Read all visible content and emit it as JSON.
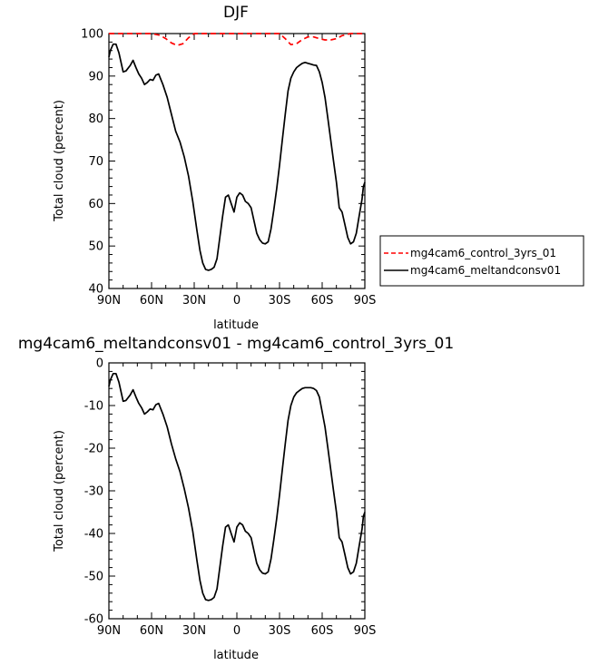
{
  "chart_data": [
    {
      "type": "line",
      "title": "DJF",
      "xlabel": "latitude",
      "ylabel": "Total cloud (percent)",
      "xlim": [
        90,
        -90
      ],
      "ylim": [
        40,
        100
      ],
      "xticks": [
        90,
        60,
        30,
        0,
        -30,
        -60,
        -90
      ],
      "xticklabels": [
        "90N",
        "60N",
        "30N",
        "0",
        "30S",
        "60S",
        "90S"
      ],
      "yticks": [
        40,
        50,
        60,
        70,
        80,
        90,
        100
      ],
      "yticklabels": [
        "40",
        "50",
        "60",
        "70",
        "80",
        "90",
        "100"
      ],
      "legend_position": "outside-right",
      "series": [
        {
          "name": "mg4cam6_control_3yrs_01",
          "color": "#ff0000",
          "dash": "dashed",
          "x": [
            90,
            60,
            54,
            50,
            46,
            42,
            38,
            34,
            30,
            0,
            -30,
            -34,
            -38,
            -42,
            -46,
            -50,
            -54,
            -58,
            -62,
            -66,
            -70,
            -74,
            -80,
            -90
          ],
          "y": [
            100,
            100,
            99.6,
            98.8,
            97.8,
            97.2,
            97.6,
            99.0,
            100,
            100,
            100,
            98.8,
            97.4,
            97.6,
            98.6,
            99.2,
            99.2,
            98.8,
            98.5,
            98.5,
            98.8,
            99.5,
            100,
            100
          ]
        },
        {
          "name": "mg4cam6_meltandconsv01",
          "color": "#000000",
          "dash": "solid",
          "x": [
            90,
            89,
            87,
            85,
            83,
            80,
            78,
            75,
            73,
            71,
            69,
            67,
            65,
            63,
            61,
            59,
            57,
            55,
            52,
            49,
            46,
            43,
            40,
            37,
            34,
            31,
            28,
            26,
            24,
            22,
            20,
            18,
            16,
            14,
            12,
            10,
            8,
            6,
            5,
            4,
            2,
            0,
            -2,
            -4,
            -6,
            -8,
            -10,
            -12,
            -14,
            -16,
            -18,
            -20,
            -22,
            -24,
            -26,
            -28,
            -30,
            -32,
            -34,
            -36,
            -38,
            -40,
            -42,
            -44,
            -46,
            -48,
            -50,
            -52,
            -54,
            -56,
            -58,
            -60,
            -62,
            -64,
            -66,
            -68,
            -70,
            -72,
            -74,
            -76,
            -78,
            -80,
            -82,
            -84,
            -86,
            -88,
            -89,
            -90
          ],
          "y": [
            94.5,
            96.0,
            97.5,
            97.5,
            95.5,
            91.0,
            91.2,
            92.5,
            93.7,
            92.0,
            90.5,
            89.5,
            88.0,
            88.5,
            89.2,
            89.0,
            90.2,
            90.5,
            88.0,
            85.0,
            81.0,
            77.0,
            74.5,
            71.0,
            66.5,
            60.5,
            53.5,
            49.0,
            46.0,
            44.5,
            44.3,
            44.5,
            45.0,
            47.0,
            52.0,
            57.0,
            61.5,
            62.0,
            61.0,
            60.0,
            58.0,
            61.5,
            62.5,
            62.0,
            60.5,
            60.0,
            59.0,
            56.0,
            53.0,
            51.5,
            50.7,
            50.5,
            51.0,
            54.0,
            58.5,
            63.5,
            69.0,
            75.0,
            81.0,
            86.5,
            89.5,
            91.0,
            92.0,
            92.5,
            93.0,
            93.2,
            93.0,
            92.8,
            92.6,
            92.5,
            91.0,
            88.5,
            85.0,
            80.0,
            75.0,
            70.0,
            65.0,
            59.0,
            58.0,
            55.0,
            52.0,
            50.5,
            51.0,
            53.0,
            57.0,
            61.0,
            64.0,
            65.0
          ]
        }
      ]
    },
    {
      "type": "line",
      "title": "mg4cam6_meltandconsv01 - mg4cam6_control_3yrs_01",
      "xlabel": "latitude",
      "ylabel": "Total cloud (percent)",
      "xlim": [
        90,
        -90
      ],
      "ylim": [
        -60,
        0
      ],
      "xticks": [
        90,
        60,
        30,
        0,
        -30,
        -60,
        -90
      ],
      "xticklabels": [
        "90N",
        "60N",
        "30N",
        "0",
        "30S",
        "60S",
        "90S"
      ],
      "yticks": [
        -60,
        -50,
        -40,
        -30,
        -20,
        -10,
        0
      ],
      "yticklabels": [
        "-60",
        "-50",
        "-40",
        "-30",
        "-20",
        "-10",
        "0"
      ],
      "series": [
        {
          "color": "#000000",
          "dash": "solid",
          "x": [
            90,
            89,
            87,
            85,
            83,
            80,
            78,
            75,
            73,
            71,
            69,
            67,
            65,
            63,
            61,
            59,
            57,
            55,
            52,
            49,
            46,
            43,
            40,
            37,
            34,
            31,
            28,
            26,
            24,
            22,
            20,
            18,
            16,
            14,
            12,
            10,
            8,
            6,
            5,
            4,
            2,
            0,
            -2,
            -4,
            -6,
            -8,
            -10,
            -12,
            -14,
            -16,
            -18,
            -20,
            -22,
            -24,
            -26,
            -28,
            -30,
            -32,
            -34,
            -36,
            -38,
            -40,
            -42,
            -44,
            -46,
            -48,
            -50,
            -52,
            -54,
            -56,
            -58,
            -60,
            -62,
            -64,
            -66,
            -68,
            -70,
            -72,
            -74,
            -76,
            -78,
            -80,
            -82,
            -84,
            -86,
            -88,
            -89,
            -90
          ],
          "y": [
            -5.5,
            -4.0,
            -2.5,
            -2.5,
            -4.5,
            -9.0,
            -8.8,
            -7.5,
            -6.3,
            -8.0,
            -9.5,
            -10.5,
            -12.0,
            -11.5,
            -10.8,
            -11.0,
            -9.8,
            -9.5,
            -12.0,
            -15.0,
            -19.0,
            -22.5,
            -25.5,
            -29.5,
            -34.0,
            -39.5,
            -46.5,
            -51.0,
            -54.0,
            -55.5,
            -55.7,
            -55.5,
            -55.0,
            -53.0,
            -48.0,
            -43.0,
            -38.5,
            -38.0,
            -39.0,
            -40.0,
            -42.0,
            -38.5,
            -37.5,
            -38.0,
            -39.5,
            -40.0,
            -41.0,
            -44.0,
            -47.0,
            -48.5,
            -49.3,
            -49.5,
            -49.0,
            -46.0,
            -41.5,
            -36.5,
            -31.0,
            -25.0,
            -19.0,
            -13.5,
            -10.0,
            -8.0,
            -7.0,
            -6.5,
            -6.0,
            -5.8,
            -5.8,
            -5.8,
            -6.0,
            -6.5,
            -8.0,
            -11.5,
            -15.0,
            -20.0,
            -25.0,
            -30.0,
            -35.0,
            -41.0,
            -42.0,
            -45.0,
            -48.0,
            -49.5,
            -49.0,
            -47.0,
            -43.0,
            -39.0,
            -36.0,
            -35.0
          ]
        }
      ]
    }
  ]
}
